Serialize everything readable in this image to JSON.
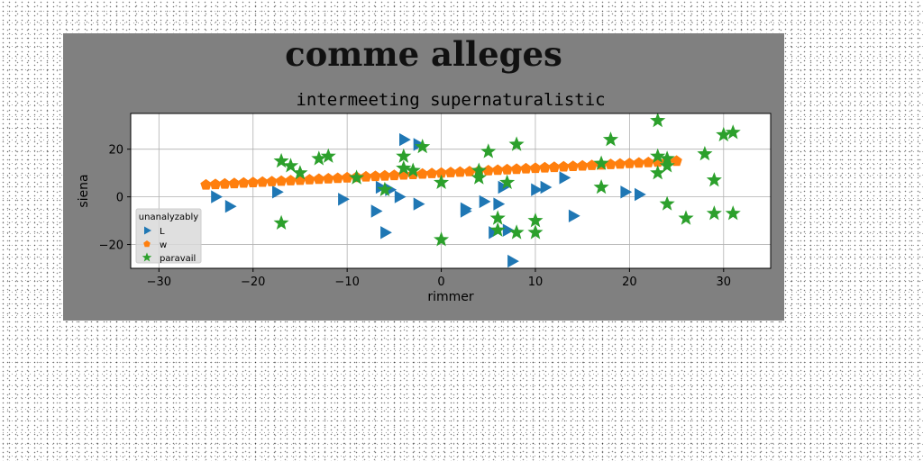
{
  "figure": {
    "suptitle": "comme alleges",
    "background": "#808080"
  },
  "chart_data": {
    "type": "scatter",
    "title": "intermeeting supernaturalistic",
    "xlabel": "rimmer",
    "ylabel": "siena",
    "xlim": [
      -33,
      35
    ],
    "ylim": [
      -30,
      35
    ],
    "xticks": [
      -30,
      -20,
      -10,
      0,
      10,
      20,
      30
    ],
    "yticks": [
      -20,
      0,
      20
    ],
    "grid": true,
    "legend": {
      "title": "unanalyzably",
      "placement": "lower-left"
    },
    "series": [
      {
        "name": "L",
        "marker": "triangle-right",
        "color": "#1f77b4",
        "points": [
          [
            -24,
            0
          ],
          [
            -22.5,
            -4
          ],
          [
            -17.5,
            2
          ],
          [
            -10.5,
            -1
          ],
          [
            -7,
            -6
          ],
          [
            -6.5,
            4
          ],
          [
            -6,
            -15
          ],
          [
            -5.5,
            3
          ],
          [
            -4.5,
            0
          ],
          [
            -4,
            24
          ],
          [
            -2.5,
            22
          ],
          [
            -2.5,
            -3
          ],
          [
            2.5,
            -5
          ],
          [
            2.5,
            -6
          ],
          [
            4.5,
            -2
          ],
          [
            5.5,
            -15
          ],
          [
            6,
            -3
          ],
          [
            6.5,
            4
          ],
          [
            7,
            -14
          ],
          [
            7.5,
            -27
          ],
          [
            10,
            3
          ],
          [
            11,
            4
          ],
          [
            13,
            8
          ],
          [
            14,
            -8
          ],
          [
            19.5,
            2
          ],
          [
            21,
            1
          ]
        ]
      },
      {
        "name": "w",
        "marker": "pentagon",
        "color": "#ff7f0e",
        "points": [
          [
            -25,
            5.0
          ],
          [
            -24,
            5.2
          ],
          [
            -23,
            5.4
          ],
          [
            -22,
            5.6
          ],
          [
            -21,
            5.8
          ],
          [
            -20,
            6.0
          ],
          [
            -19,
            6.2
          ],
          [
            -18,
            6.4
          ],
          [
            -17,
            6.6
          ],
          [
            -16,
            6.8
          ],
          [
            -15,
            7.0
          ],
          [
            -14,
            7.2
          ],
          [
            -13,
            7.4
          ],
          [
            -12,
            7.6
          ],
          [
            -11,
            7.8
          ],
          [
            -10,
            8.0
          ],
          [
            -9,
            8.2
          ],
          [
            -8,
            8.4
          ],
          [
            -7,
            8.6
          ],
          [
            -6,
            8.8
          ],
          [
            -5,
            9.0
          ],
          [
            -4,
            9.2
          ],
          [
            -3,
            9.4
          ],
          [
            -2,
            9.6
          ],
          [
            -1,
            9.8
          ],
          [
            0,
            10.0
          ],
          [
            1,
            10.2
          ],
          [
            2,
            10.4
          ],
          [
            3,
            10.6
          ],
          [
            4,
            10.8
          ],
          [
            5,
            11.0
          ],
          [
            6,
            11.2
          ],
          [
            7,
            11.4
          ],
          [
            8,
            11.6
          ],
          [
            9,
            11.8
          ],
          [
            10,
            12.0
          ],
          [
            11,
            12.2
          ],
          [
            12,
            12.4
          ],
          [
            13,
            12.6
          ],
          [
            14,
            12.8
          ],
          [
            15,
            13.0
          ],
          [
            16,
            13.2
          ],
          [
            17,
            13.4
          ],
          [
            18,
            13.6
          ],
          [
            19,
            13.8
          ],
          [
            20,
            14.0
          ],
          [
            21,
            14.2
          ],
          [
            22,
            14.4
          ],
          [
            23,
            14.6
          ],
          [
            24,
            14.8
          ],
          [
            25,
            15.0
          ]
        ]
      },
      {
        "name": "paravail",
        "marker": "star",
        "color": "#2ca02c",
        "points": [
          [
            -17,
            15
          ],
          [
            -17,
            -11
          ],
          [
            -16,
            13
          ],
          [
            -15,
            10
          ],
          [
            -13,
            16
          ],
          [
            -12,
            17
          ],
          [
            -9,
            8
          ],
          [
            -6,
            3
          ],
          [
            -4,
            17
          ],
          [
            -4,
            12
          ],
          [
            -3,
            11
          ],
          [
            -2,
            21
          ],
          [
            0,
            6
          ],
          [
            0,
            -18
          ],
          [
            4,
            11
          ],
          [
            4,
            8
          ],
          [
            5,
            19
          ],
          [
            6,
            -9
          ],
          [
            6,
            -14
          ],
          [
            7,
            6
          ],
          [
            8,
            22
          ],
          [
            8,
            -15
          ],
          [
            10,
            -10
          ],
          [
            10,
            -15
          ],
          [
            17,
            14
          ],
          [
            17,
            4
          ],
          [
            18,
            24
          ],
          [
            23,
            32
          ],
          [
            23,
            10
          ],
          [
            23,
            17
          ],
          [
            24,
            16
          ],
          [
            24,
            13
          ],
          [
            24,
            -3
          ],
          [
            26,
            -9
          ],
          [
            28,
            18
          ],
          [
            29,
            7
          ],
          [
            29,
            -7
          ],
          [
            30,
            26
          ],
          [
            31,
            27
          ],
          [
            31,
            -7
          ]
        ]
      }
    ]
  }
}
